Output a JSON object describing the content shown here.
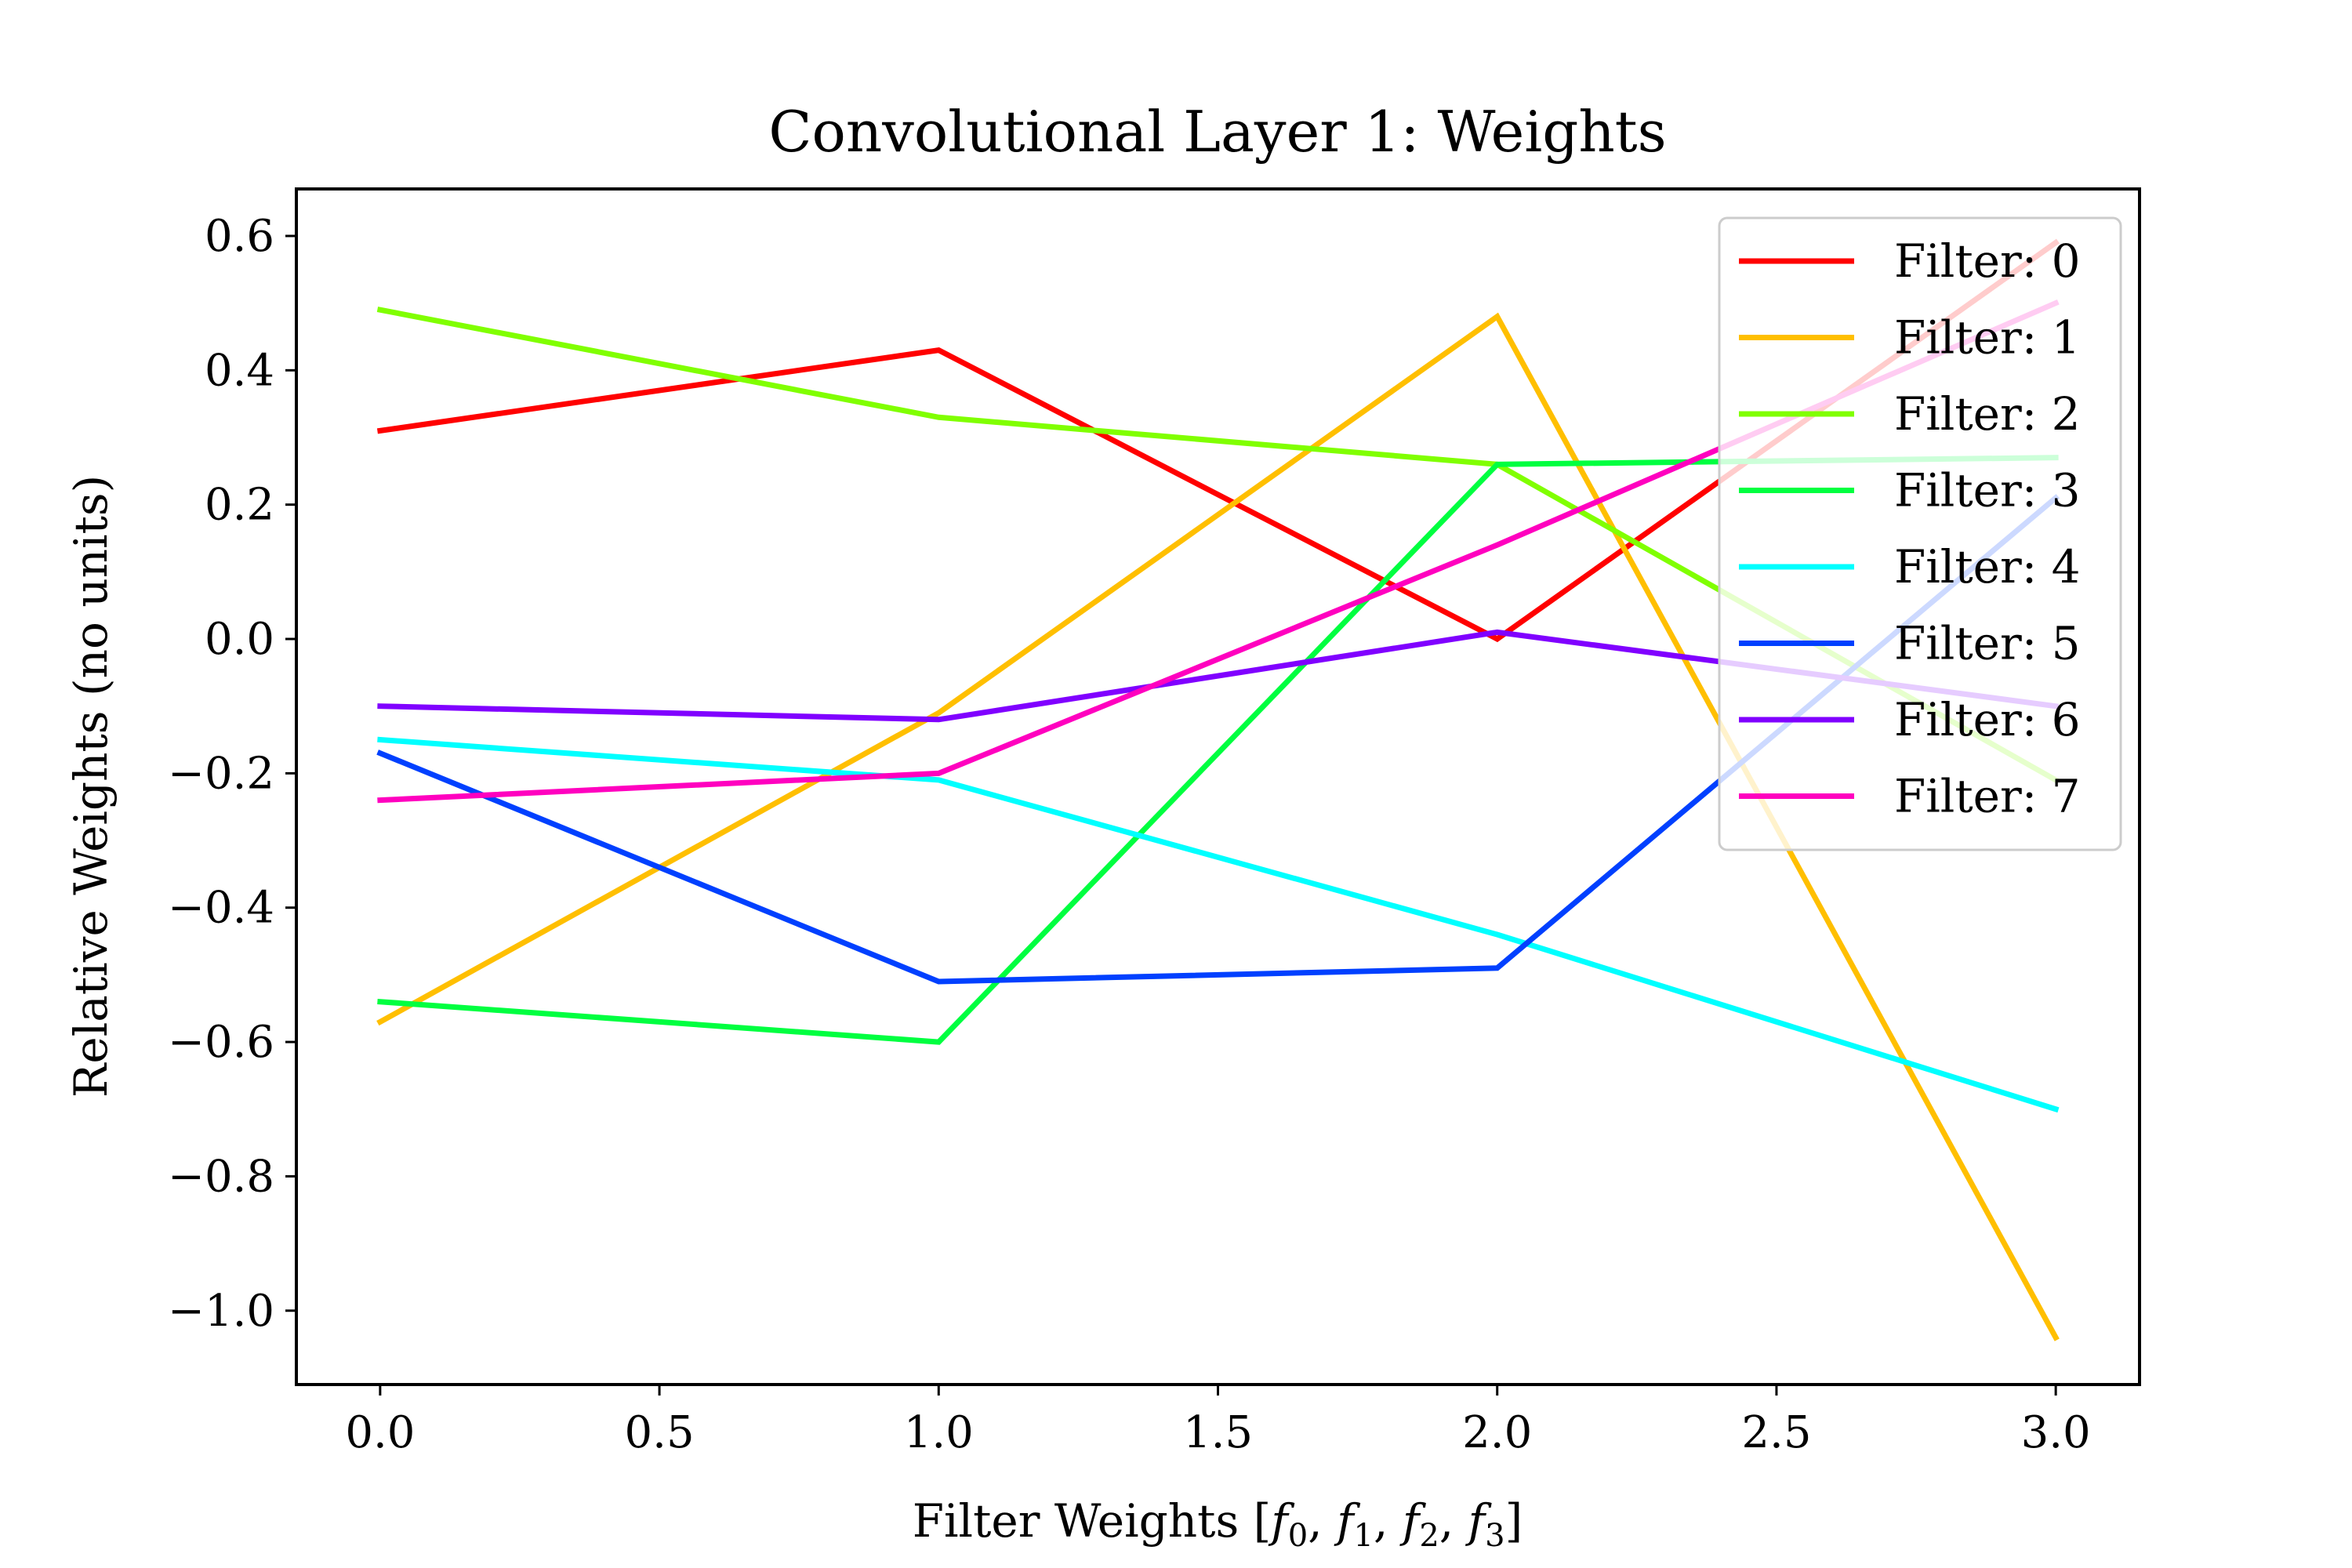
{
  "chart_data": {
    "type": "line",
    "title": "Convolutional Layer 1: Weights",
    "xlabel_prefix": "Filter Weights [",
    "xlabel_suffix": "]",
    "xlabel_terms": [
      {
        "base": "f",
        "sub": "0"
      },
      {
        "base": "f",
        "sub": "1"
      },
      {
        "base": "f",
        "sub": "2"
      },
      {
        "base": "f",
        "sub": "3"
      }
    ],
    "ylabel": "Relative Weights (no units)",
    "x": [
      0,
      1,
      2,
      3
    ],
    "xlim": [
      -0.15,
      3.15
    ],
    "ylim": [
      -1.11,
      0.67
    ],
    "xticks": [
      0.0,
      0.5,
      1.0,
      1.5,
      2.0,
      2.5,
      3.0
    ],
    "xtick_labels": [
      "0.0",
      "0.5",
      "1.0",
      "1.5",
      "2.0",
      "2.5",
      "3.0"
    ],
    "yticks": [
      0.6,
      0.4,
      0.2,
      0.0,
      -0.2,
      -0.4,
      -0.6,
      -0.8,
      -1.0
    ],
    "ytick_labels": [
      "0.6",
      "0.4",
      "0.2",
      "0.0",
      "−0.2",
      "−0.4",
      "−0.6",
      "−0.8",
      "−1.0"
    ],
    "grid": false,
    "legend_position": "top-right",
    "series": [
      {
        "name": "Filter: 0",
        "color": "#ff0000",
        "values": [
          0.31,
          0.43,
          0.0,
          0.59
        ]
      },
      {
        "name": "Filter: 1",
        "color": "#ffbf00",
        "values": [
          -0.57,
          -0.11,
          0.48,
          -1.04
        ]
      },
      {
        "name": "Filter: 2",
        "color": "#80ff00",
        "values": [
          0.49,
          0.33,
          0.26,
          -0.21
        ]
      },
      {
        "name": "Filter: 3",
        "color": "#00ff40",
        "values": [
          -0.54,
          -0.6,
          0.26,
          0.27
        ]
      },
      {
        "name": "Filter: 4",
        "color": "#00ffff",
        "values": [
          -0.15,
          -0.21,
          -0.44,
          -0.7
        ]
      },
      {
        "name": "Filter: 5",
        "color": "#0040ff",
        "values": [
          -0.17,
          -0.51,
          -0.49,
          0.21
        ]
      },
      {
        "name": "Filter: 6",
        "color": "#8000ff",
        "values": [
          -0.1,
          -0.12,
          0.01,
          -0.1
        ]
      },
      {
        "name": "Filter: 7",
        "color": "#ff00bf",
        "values": [
          -0.24,
          -0.2,
          0.14,
          0.5
        ]
      }
    ]
  }
}
